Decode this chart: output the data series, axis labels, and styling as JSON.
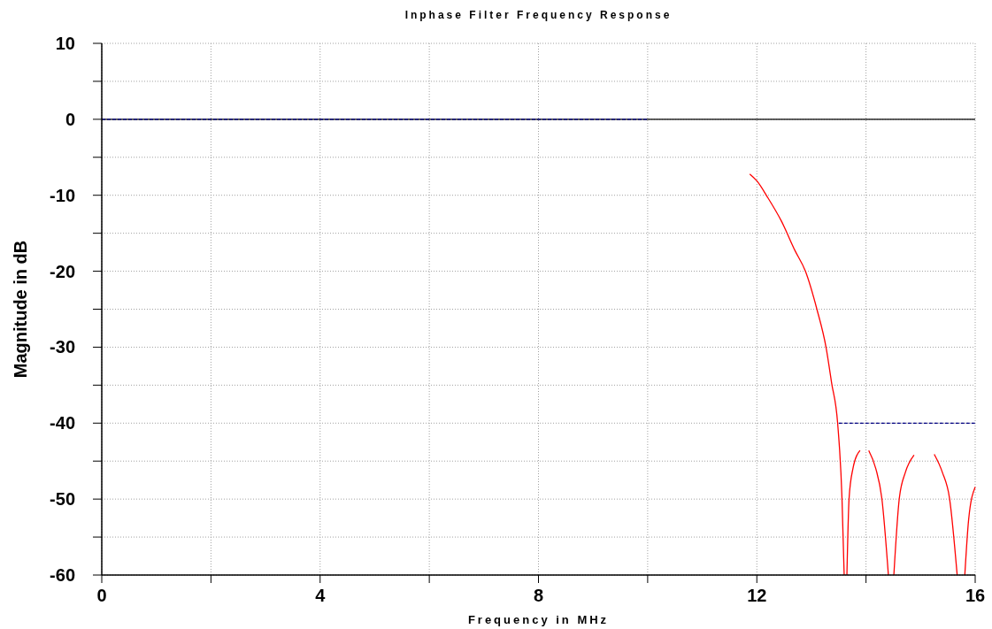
{
  "chart_data": {
    "type": "line",
    "title": "Inphase Filter Frequency Response",
    "xlabel": "Frequency in MHz",
    "ylabel": "Magnitude in dB",
    "xlim": [
      0,
      16
    ],
    "ylim": [
      -60,
      10
    ],
    "xticks": [
      0,
      {
        "value": 2,
        "label": null
      },
      4,
      {
        "value": 6,
        "label": null
      },
      8,
      {
        "value": 10,
        "label": null
      },
      12,
      {
        "value": 14,
        "label": null
      },
      16
    ],
    "yticks": [
      10,
      {
        "value": 5,
        "label": null
      },
      0,
      {
        "value": -5,
        "label": null
      },
      -10,
      {
        "value": -15,
        "label": null
      },
      -20,
      {
        "value": -25,
        "label": null
      },
      -30,
      {
        "value": -35,
        "label": null
      },
      -40,
      {
        "value": -45,
        "label": null
      },
      -50,
      {
        "value": -55,
        "label": null
      },
      -60
    ],
    "grid": true,
    "ref_lines": [
      {
        "axis": "y",
        "value": 0,
        "color": "#000000"
      }
    ],
    "series": [
      {
        "color": "#000080",
        "line_style": "dashed",
        "x": [
          0,
          10
        ],
        "values": [
          0,
          0
        ]
      },
      {
        "color": "#000080",
        "line_style": "dashed",
        "x": [
          13.5,
          16
        ],
        "values": [
          -40,
          -40
        ]
      },
      {
        "color": "#ff0000",
        "x": [
          11.87,
          12.0,
          12.2,
          12.45,
          12.7,
          12.89,
          13.1,
          13.27,
          13.37,
          13.48,
          13.56,
          13.6,
          13.62,
          13.65,
          13.69,
          13.76,
          13.89,
          13.97,
          14.05,
          14.18,
          14.29,
          14.41,
          14.46,
          14.51,
          14.61,
          14.72,
          14.88,
          15.07,
          15.25,
          15.4,
          15.53,
          15.67,
          15.74,
          15.81,
          15.88,
          16.0
        ],
        "values": [
          -7.2,
          -8.1,
          -10.3,
          -13.4,
          -17.3,
          -20.0,
          -25.0,
          -30.1,
          -34.7,
          -40,
          -49.9,
          -60,
          null,
          -60,
          -49.9,
          -46,
          -43.6,
          null,
          -43.6,
          -46,
          -49.9,
          -60,
          null,
          -60,
          -49.9,
          -46.5,
          -44.2,
          null,
          -44.1,
          -46.5,
          -49.9,
          -60,
          null,
          -60,
          -52.7,
          -48.4
        ]
      }
    ]
  }
}
